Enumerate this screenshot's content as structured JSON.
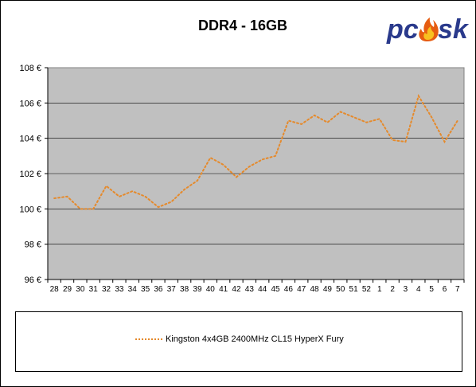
{
  "brand": {
    "logo_text_left": "pc",
    "logo_text_right": "sk"
  },
  "chart_data": {
    "type": "line",
    "title": "DDR4 - 16GB",
    "xlabel": "",
    "ylabel": "",
    "categories": [
      "28",
      "29",
      "30",
      "31",
      "32",
      "33",
      "34",
      "35",
      "36",
      "37",
      "38",
      "39",
      "40",
      "41",
      "42",
      "43",
      "44",
      "45",
      "46",
      "47",
      "48",
      "49",
      "50",
      "51",
      "52",
      "1",
      "2",
      "3",
      "4",
      "5",
      "6",
      "7"
    ],
    "series": [
      {
        "name": "Kingston 4x4GB 2400MHz CL15 HyperX Fury",
        "color": "#e58a2c",
        "values": [
          100.6,
          100.7,
          100.0,
          100.0,
          101.3,
          100.7,
          101.0,
          100.7,
          100.1,
          100.4,
          101.1,
          101.6,
          102.9,
          102.5,
          101.8,
          102.4,
          102.8,
          103.0,
          105.0,
          104.8,
          105.3,
          104.9,
          105.5,
          105.2,
          104.9,
          105.1,
          103.9,
          103.8,
          106.4,
          105.2,
          103.8,
          105.0
        ]
      }
    ],
    "ylim": [
      96,
      108
    ],
    "yticks": [
      96,
      98,
      100,
      102,
      104,
      106,
      108
    ],
    "ytick_labels": [
      "96 €",
      "98 €",
      "100 €",
      "102 €",
      "104 €",
      "106 €",
      "108 €"
    ],
    "grid": true,
    "legend_position": "bottom",
    "plot_background": "#c0c0c0"
  }
}
